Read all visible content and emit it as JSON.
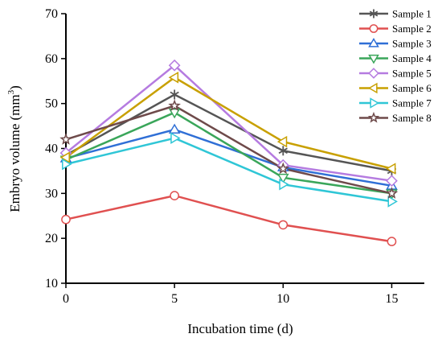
{
  "chart_data": {
    "type": "line",
    "xlabel": "Incubation time (d)",
    "ylabel_main": "Embryo volume (mm",
    "ylabel_sup": "3",
    "ylabel_close": ")",
    "x": [
      0,
      5,
      10,
      15
    ],
    "xticks": [
      "0",
      "5",
      "10",
      "15"
    ],
    "yticks": [
      "10",
      "20",
      "30",
      "40",
      "50",
      "60",
      "70"
    ],
    "xlim": [
      0,
      16.5
    ],
    "ylim": [
      10,
      70
    ],
    "legend_position": "top-right",
    "grid": false,
    "series": [
      {
        "name": "Sample 1",
        "values": [
          38.5,
          52.0,
          39.5,
          35.0
        ],
        "color": "#555555",
        "marker": "star"
      },
      {
        "name": "Sample 2",
        "values": [
          24.2,
          29.5,
          23.0,
          19.3
        ],
        "color": "#e05050",
        "marker": "circle"
      },
      {
        "name": "Sample 3",
        "values": [
          37.8,
          44.2,
          35.8,
          31.7
        ],
        "color": "#2f6fd6",
        "marker": "triangle-up"
      },
      {
        "name": "Sample 4",
        "values": [
          37.5,
          48.0,
          33.5,
          30.0
        ],
        "color": "#3aa65a",
        "marker": "triangle-down"
      },
      {
        "name": "Sample 5",
        "values": [
          39.0,
          58.5,
          36.3,
          32.8
        ],
        "color": "#b57be0",
        "marker": "diamond"
      },
      {
        "name": "Sample 6",
        "values": [
          38.0,
          55.8,
          41.5,
          35.5
        ],
        "color": "#c8a000",
        "marker": "triangle-left"
      },
      {
        "name": "Sample 7",
        "values": [
          36.5,
          42.3,
          32.0,
          28.2
        ],
        "color": "#2fc6d6",
        "marker": "triangle-right"
      },
      {
        "name": "Sample 8",
        "values": [
          42.0,
          49.5,
          35.5,
          30.0
        ],
        "color": "#6e4a4a",
        "marker": "star5"
      }
    ]
  }
}
